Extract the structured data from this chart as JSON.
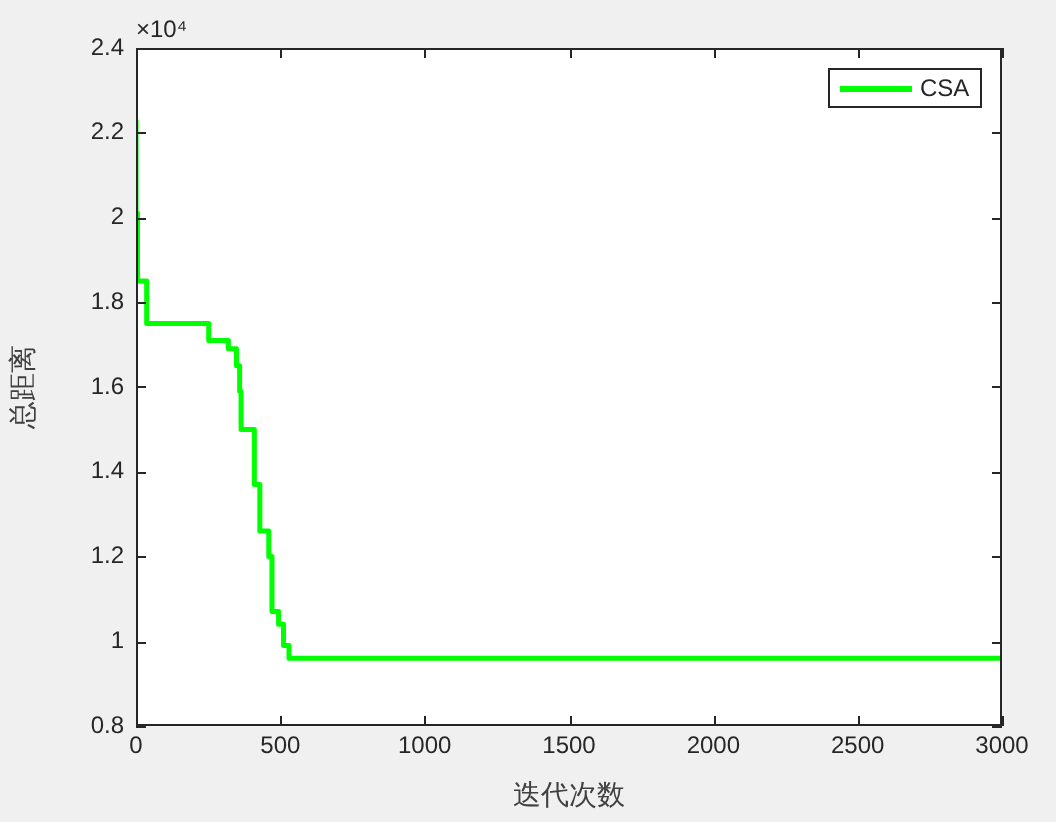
{
  "chart_data": {
    "type": "step",
    "xlabel": "迭代次数",
    "ylabel": "总距离",
    "annotations": [
      "×10⁴"
    ],
    "xlim": [
      0,
      3000
    ],
    "xticks": [
      0,
      500,
      1000,
      1500,
      2000,
      2500,
      3000
    ],
    "ylim": [
      0.8,
      2.4
    ],
    "yticks": [
      0.8,
      1,
      1.2,
      1.4,
      1.6,
      1.8,
      2,
      2.2,
      2.4
    ],
    "grid": false,
    "legend": "top right",
    "marker": "none",
    "line_style": "solid",
    "series": [
      {
        "name": "CSA",
        "color": "#00ff00",
        "x": [
          0,
          0,
          5,
          37,
          252,
          320,
          348,
          359,
          364,
          410,
          429,
          460,
          471,
          494,
          511,
          530,
          3000
        ],
        "values": [
          2.23,
          2.01,
          1.85,
          1.75,
          1.71,
          1.69,
          1.65,
          1.59,
          1.5,
          1.37,
          1.26,
          1.2,
          1.07,
          1.04,
          0.99,
          0.96,
          0.96
        ]
      }
    ]
  }
}
